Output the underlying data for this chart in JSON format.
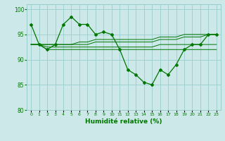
{
  "xlabel": "Humidité relative (%)",
  "bg_color": "#cce8e8",
  "grid_color": "#99cccc",
  "line_color": "#007700",
  "xlim": [
    -0.5,
    23.5
  ],
  "ylim": [
    80,
    101
  ],
  "yticks": [
    80,
    85,
    90,
    95,
    100
  ],
  "xticks": [
    0,
    1,
    2,
    3,
    4,
    5,
    6,
    7,
    8,
    9,
    10,
    11,
    12,
    13,
    14,
    15,
    16,
    17,
    18,
    19,
    20,
    21,
    22,
    23
  ],
  "series1": [
    97,
    93,
    92,
    93,
    97,
    98.5,
    97,
    97,
    95,
    95.5,
    95,
    92,
    88,
    87,
    85.5,
    85,
    88,
    87,
    89,
    92,
    93,
    93,
    95,
    95
  ],
  "series2": [
    93,
    93,
    92,
    92,
    92,
    92,
    92,
    92,
    92,
    92,
    92,
    92,
    92,
    92,
    92,
    92,
    92,
    92,
    92,
    92,
    92,
    92,
    92,
    92
  ],
  "series3": [
    93,
    93,
    92.5,
    92.5,
    92.5,
    92.5,
    92.5,
    92.5,
    92.5,
    92.5,
    92.5,
    92.5,
    92.5,
    92.5,
    92.5,
    92.5,
    93,
    93,
    93,
    93,
    93,
    93,
    93,
    93
  ],
  "series4": [
    93,
    93,
    93,
    93,
    93,
    93,
    93,
    93,
    93.5,
    93.5,
    93.5,
    93.5,
    93.5,
    93.5,
    93.5,
    93.5,
    94,
    94,
    94,
    94.5,
    94.5,
    94.5,
    95,
    95
  ],
  "series5": [
    93,
    93,
    93,
    93,
    93,
    93,
    93.5,
    93.5,
    94,
    94,
    94,
    94,
    94,
    94,
    94,
    94,
    94.5,
    94.5,
    94.5,
    95,
    95,
    95,
    95,
    95
  ]
}
